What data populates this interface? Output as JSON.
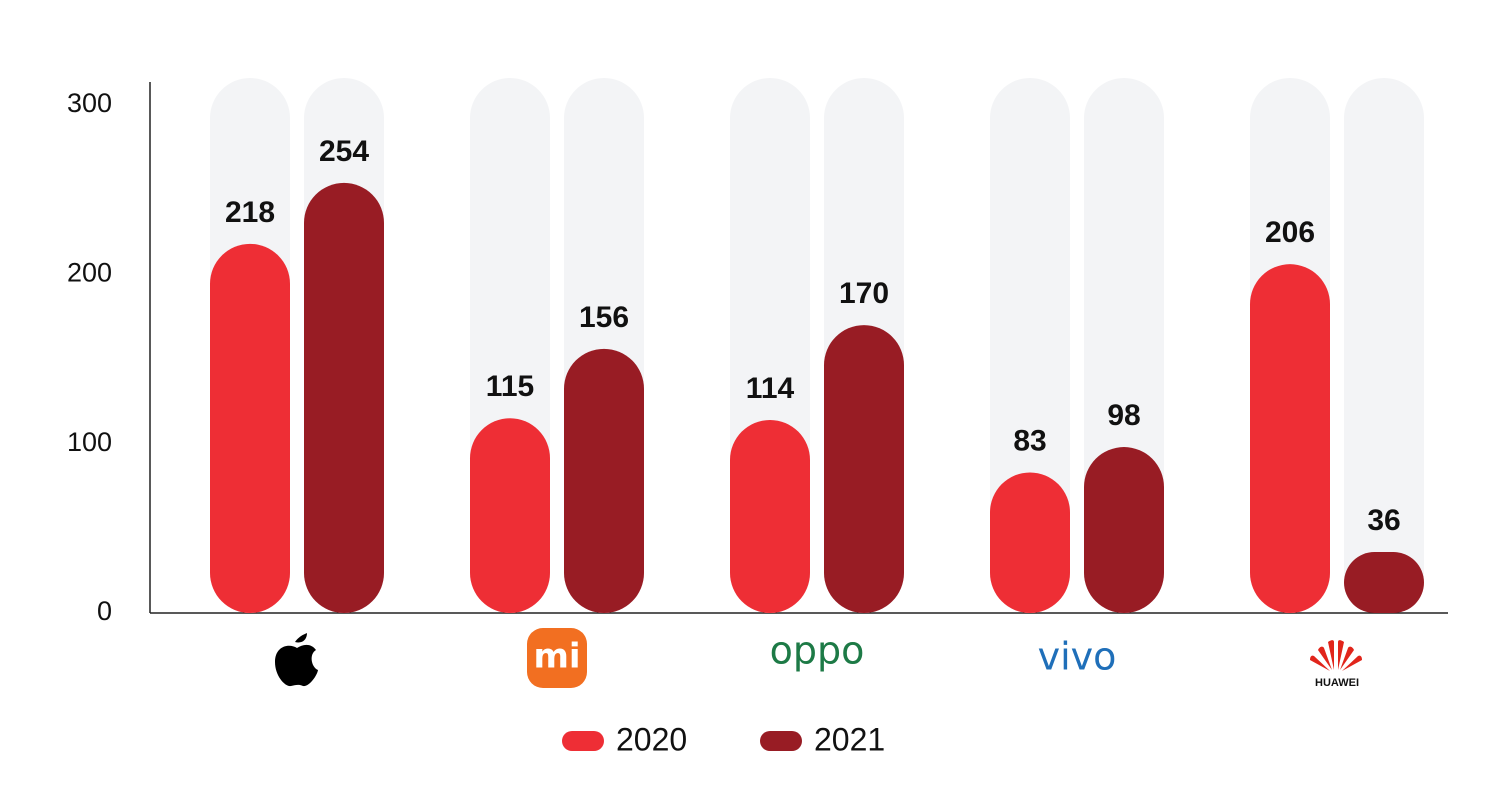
{
  "chart_data": {
    "type": "bar",
    "categories": [
      null,
      "mi",
      "oppo",
      "vivo",
      "HUAWEI"
    ],
    "series": [
      {
        "name": "2020",
        "color": "#ee2e35",
        "values": [
          218,
          115,
          114,
          83,
          206
        ]
      },
      {
        "name": "2021",
        "color": "#981c24",
        "values": [
          254,
          156,
          170,
          98,
          36
        ]
      }
    ],
    "ylim": [
      0,
      300
    ],
    "yticks": [
      0,
      100,
      200,
      300
    ],
    "grid": false,
    "legend": "bottom"
  }
}
